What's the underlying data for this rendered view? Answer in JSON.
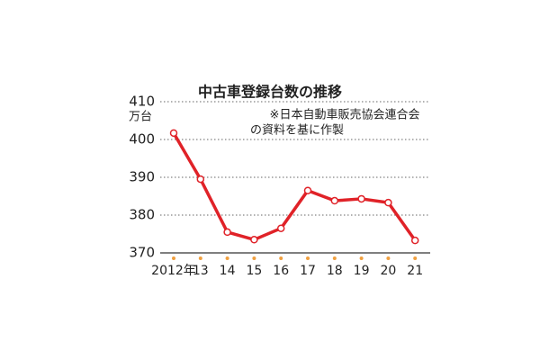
{
  "chart_data": {
    "type": "line",
    "title": "中古車登録台数の推移",
    "note": [
      "※日本自動車販売協会連合会",
      "の資料を基に作製"
    ],
    "y_unit": "万台",
    "categories": [
      "2012年",
      "13",
      "14",
      "15",
      "16",
      "17",
      "18",
      "19",
      "20",
      "21"
    ],
    "values": [
      401.7,
      389.5,
      375.5,
      373.5,
      376.5,
      386.5,
      383.8,
      384.3,
      383.3,
      373.3
    ],
    "color": "#e02228",
    "ylim": [
      370,
      410
    ],
    "yticks": [
      370,
      380,
      390,
      400,
      410
    ],
    "grid": true
  }
}
